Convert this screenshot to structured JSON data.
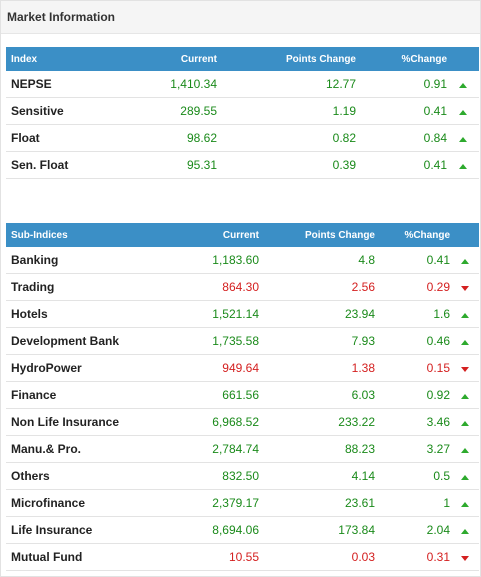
{
  "panel": {
    "title": "Market Information"
  },
  "colors": {
    "header_bg": "#3b8fc6",
    "positive": "#1a8a1a",
    "negative": "#d42020"
  },
  "index_table": {
    "headers": [
      "Index",
      "Current",
      "Points Change",
      "%Change"
    ],
    "rows": [
      {
        "name": "NEPSE",
        "current": "1,410.34",
        "points": "12.77",
        "percent": "0.91",
        "dir": "up"
      },
      {
        "name": "Sensitive",
        "current": "289.55",
        "points": "1.19",
        "percent": "0.41",
        "dir": "up"
      },
      {
        "name": "Float",
        "current": "98.62",
        "points": "0.82",
        "percent": "0.84",
        "dir": "up"
      },
      {
        "name": "Sen. Float",
        "current": "95.31",
        "points": "0.39",
        "percent": "0.41",
        "dir": "up"
      }
    ]
  },
  "sub_table": {
    "headers": [
      "Sub-Indices",
      "Current",
      "Points Change",
      "%Change"
    ],
    "rows": [
      {
        "name": "Banking",
        "current": "1,183.60",
        "points": "4.8",
        "percent": "0.41",
        "dir": "up"
      },
      {
        "name": "Trading",
        "current": "864.30",
        "points": "2.56",
        "percent": "0.29",
        "dir": "down"
      },
      {
        "name": "Hotels",
        "current": "1,521.14",
        "points": "23.94",
        "percent": "1.6",
        "dir": "up"
      },
      {
        "name": "Development Bank",
        "current": "1,735.58",
        "points": "7.93",
        "percent": "0.46",
        "dir": "up"
      },
      {
        "name": "HydroPower",
        "current": "949.64",
        "points": "1.38",
        "percent": "0.15",
        "dir": "down"
      },
      {
        "name": "Finance",
        "current": "661.56",
        "points": "6.03",
        "percent": "0.92",
        "dir": "up"
      },
      {
        "name": "Non Life Insurance",
        "current": "6,968.52",
        "points": "233.22",
        "percent": "3.46",
        "dir": "up"
      },
      {
        "name": "Manu.& Pro.",
        "current": "2,784.74",
        "points": "88.23",
        "percent": "3.27",
        "dir": "up"
      },
      {
        "name": "Others",
        "current": "832.50",
        "points": "4.14",
        "percent": "0.5",
        "dir": "up"
      },
      {
        "name": "Microfinance",
        "current": "2,379.17",
        "points": "23.61",
        "percent": "1",
        "dir": "up"
      },
      {
        "name": "Life Insurance",
        "current": "8,694.06",
        "points": "173.84",
        "percent": "2.04",
        "dir": "up"
      },
      {
        "name": "Mutual Fund",
        "current": "10.55",
        "points": "0.03",
        "percent": "0.31",
        "dir": "down"
      }
    ]
  }
}
